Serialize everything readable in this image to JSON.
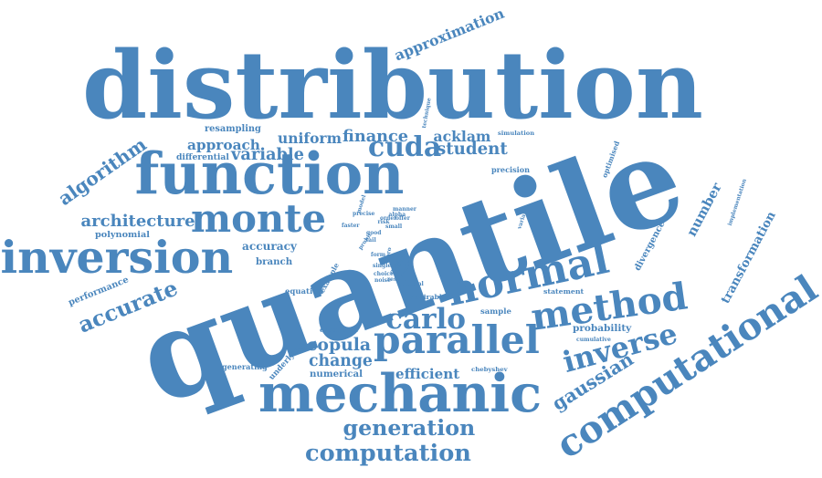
{
  "color": "#4a86bd",
  "words": [
    "distribution",
    "quantile",
    "function",
    "mechanic",
    "computational",
    "inversion",
    "monte",
    "parallel",
    "normal",
    "method",
    "carlo",
    "inverse",
    "number",
    "implementation",
    "computation",
    "generation",
    "cuda",
    "approximation",
    "gaussian",
    "accurate",
    "algorithm",
    "architecture",
    "copula",
    "change",
    "efficient",
    "transformation",
    "divergence",
    "student",
    "finance",
    "acklam",
    "uniform",
    "variable",
    "approach",
    "resampling",
    "differential",
    "polynomial",
    "accuracy",
    "branch",
    "performance",
    "equation",
    "example",
    "underlying",
    "generating",
    "numerical",
    "execution",
    "sample",
    "probability",
    "cumulative",
    "statement",
    "desirable",
    "optimised",
    "precision",
    "variate",
    "chebyshev",
    "simulation",
    "technique",
    "moro",
    "probit",
    "form",
    "single",
    "choice",
    "noise",
    "faster",
    "precise",
    "model",
    "alpha",
    "manner",
    "offer",
    "order",
    "double",
    "good",
    "risk",
    "small",
    "tail",
    "quasi",
    "central",
    "result",
    "optimal"
  ]
}
